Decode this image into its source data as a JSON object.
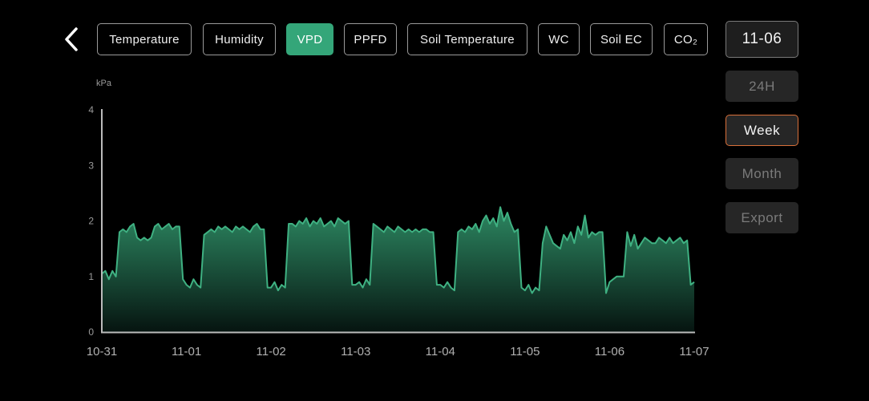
{
  "header": {
    "back_icon": "chevron-left-icon",
    "tabs": [
      {
        "label": "Temperature",
        "active": false
      },
      {
        "label": "Humidity",
        "active": false
      },
      {
        "label": "VPD",
        "active": true
      },
      {
        "label": "PPFD",
        "active": false
      },
      {
        "label": "Soil Temperature",
        "active": false
      },
      {
        "label": "WC",
        "active": false
      },
      {
        "label": "Soil EC",
        "active": false
      },
      {
        "label": "CO₂",
        "active": false
      }
    ]
  },
  "side": {
    "date": "11-06",
    "ranges": [
      {
        "label": "24H",
        "selected": false
      },
      {
        "label": "Week",
        "selected": true
      },
      {
        "label": "Month",
        "selected": false
      }
    ],
    "export_label": "Export"
  },
  "colors": {
    "accent": "#34a679",
    "line": "#3fb182",
    "selected_border": "#d9703a"
  },
  "chart_data": {
    "type": "area",
    "ylabel": "kPa",
    "ylim": [
      0,
      4
    ],
    "yticks": [
      "0",
      "1",
      "2",
      "3",
      "4"
    ],
    "xticks": [
      "10-31",
      "11-01",
      "11-02",
      "11-03",
      "11-04",
      "11-05",
      "11-06",
      "11-07"
    ],
    "grid": false,
    "series": [
      {
        "date": "10-31",
        "hourly": [
          1.05,
          1.1,
          0.95,
          1.1,
          1.0,
          1.8,
          1.85,
          1.8,
          1.9,
          1.95,
          1.7,
          1.65,
          1.7,
          1.65,
          1.7,
          1.9,
          1.95,
          1.85,
          1.9,
          1.95,
          1.85,
          1.9,
          1.9,
          0.95
        ]
      },
      {
        "date": "11-01",
        "hourly": [
          0.85,
          0.8,
          0.95,
          0.85,
          0.8,
          1.75,
          1.8,
          1.85,
          1.8,
          1.9,
          1.85,
          1.9,
          1.85,
          1.8,
          1.9,
          1.85,
          1.9,
          1.85,
          1.8,
          1.9,
          1.95,
          1.85,
          1.85,
          0.8
        ]
      },
      {
        "date": "11-02",
        "hourly": [
          0.8,
          0.9,
          0.75,
          0.85,
          0.8,
          1.95,
          1.95,
          1.9,
          2.0,
          1.95,
          2.05,
          1.9,
          2.0,
          1.95,
          2.05,
          1.9,
          1.95,
          2.0,
          1.9,
          2.05,
          2.0,
          1.95,
          2.0,
          0.85
        ]
      },
      {
        "date": "11-03",
        "hourly": [
          0.85,
          0.9,
          0.8,
          0.95,
          0.85,
          1.95,
          1.9,
          1.85,
          1.8,
          1.9,
          1.85,
          1.8,
          1.9,
          1.85,
          1.8,
          1.85,
          1.8,
          1.85,
          1.8,
          1.85,
          1.85,
          1.8,
          1.8,
          0.85
        ]
      },
      {
        "date": "11-04",
        "hourly": [
          0.85,
          0.8,
          0.9,
          0.8,
          0.75,
          1.8,
          1.85,
          1.8,
          1.9,
          1.85,
          1.95,
          1.8,
          2.0,
          2.1,
          1.95,
          2.05,
          1.9,
          2.25,
          2.0,
          2.15,
          1.95,
          1.8,
          1.85,
          0.8
        ]
      },
      {
        "date": "11-05",
        "hourly": [
          0.75,
          0.85,
          0.7,
          0.8,
          0.75,
          1.6,
          1.9,
          1.75,
          1.6,
          1.55,
          1.5,
          1.75,
          1.65,
          1.8,
          1.6,
          1.9,
          1.75,
          2.1,
          1.7,
          1.8,
          1.75,
          1.8,
          1.8,
          0.7
        ]
      },
      {
        "date": "11-06",
        "hourly": [
          0.9,
          0.95,
          1.0,
          1.0,
          1.0,
          1.8,
          1.55,
          1.75,
          1.5,
          1.6,
          1.7,
          1.65,
          1.6,
          1.6,
          1.7,
          1.65,
          1.6,
          1.7,
          1.6,
          1.65,
          1.7,
          1.6,
          1.65,
          0.85
        ]
      },
      {
        "date": "11-07",
        "hourly": [
          0.9
        ]
      }
    ]
  }
}
